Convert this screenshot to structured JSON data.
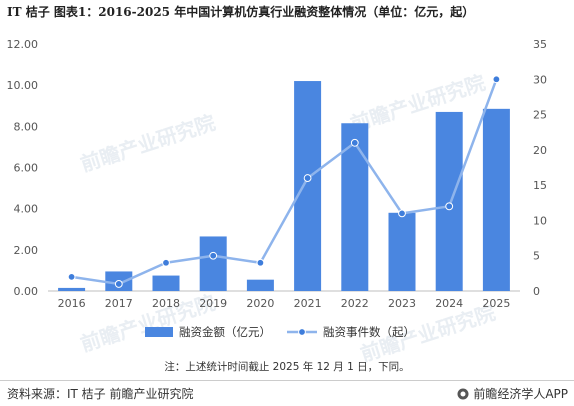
{
  "header": {
    "title": "IT 桔子  图表1：2016-2025 年中国计算机仿真行业融资整体情况（单位：亿元，起）"
  },
  "footer": {
    "source": "资料来源：IT 桔子 前瞻产业研究院",
    "brand": "前瞻经济学人APP"
  },
  "watermark": {
    "text": "前瞻产业研究院"
  },
  "colors": {
    "bar": "#4A86E0",
    "line": "#8EB4EC",
    "marker": "#3E7DDB"
  },
  "chart_data": {
    "type": "bar",
    "categories": [
      "2016",
      "2017",
      "2018",
      "2019",
      "2020",
      "2021",
      "2022",
      "2023",
      "2024",
      "2025"
    ],
    "series": [
      {
        "name": "融资金额（亿元）",
        "type": "bar",
        "axis": "left",
        "values": [
          0.15,
          0.95,
          0.75,
          2.65,
          0.55,
          10.2,
          8.15,
          3.8,
          8.7,
          8.85
        ]
      },
      {
        "name": "融资事件数（起）",
        "type": "line",
        "axis": "right",
        "values": [
          2,
          1,
          4,
          5,
          4,
          16,
          21,
          11,
          12,
          30
        ]
      }
    ],
    "y_left": {
      "ylim": [
        0,
        12
      ],
      "ticks": [
        "0.00",
        "2.00",
        "4.00",
        "6.00",
        "8.00",
        "10.00",
        "12.00"
      ]
    },
    "y_right": {
      "ylim": [
        0,
        35
      ],
      "ticks": [
        "0",
        "5",
        "10",
        "15",
        "20",
        "25",
        "30",
        "35"
      ]
    },
    "grid": false,
    "legend": "bottom-center",
    "note": "注：上述统计时间截止 2025 年 12 月 1 日，下同。"
  }
}
